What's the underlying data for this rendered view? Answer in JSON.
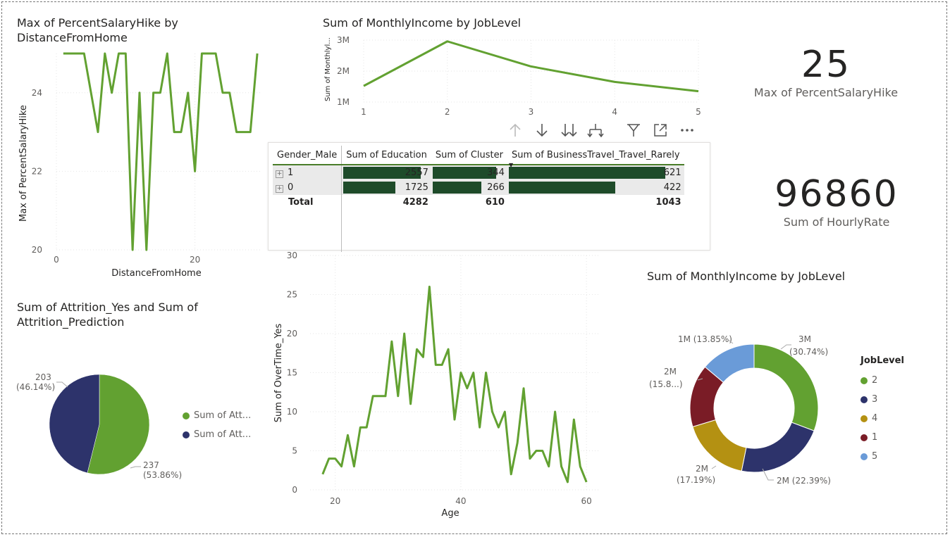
{
  "visuals": {
    "line_salary_hike": {
      "title": "Max of PercentSalaryHike by DistanceFromHome",
      "xlabel": "DistanceFromHome",
      "ylabel": "Max of PercentSalaryHike"
    },
    "line_income_joblevel": {
      "title": "Sum of MonthlyIncome by JobLevel",
      "ylabel": "Sum of Monthlyl..."
    },
    "card_salary_hike": {
      "value": "25",
      "label": "Max of PercentSalaryHike"
    },
    "card_hourly_rate": {
      "value": "96860",
      "label": "Sum of HourlyRate"
    },
    "matrix": {
      "headers": [
        "Gender_Male",
        "Sum of Education",
        "Sum of Cluster",
        "Sum of BusinessTravel_Travel_Rarely"
      ],
      "rows": [
        {
          "label": "1",
          "education": "2557",
          "cluster": "344",
          "travel": "621"
        },
        {
          "label": "0",
          "education": "1725",
          "cluster": "266",
          "travel": "422"
        }
      ],
      "total": {
        "label": "Total",
        "education": "4282",
        "cluster": "610",
        "travel": "1043"
      },
      "bar_fraction": {
        "education": [
          1.0,
          0.675
        ],
        "cluster": [
          1.0,
          0.773
        ],
        "travel": [
          1.0,
          0.68
        ]
      },
      "bar_color": "#1e4b2a"
    },
    "toolbar": {
      "icons": [
        "drill-up-icon",
        "drill-down-icon",
        "expand-all-down-icon",
        "expand-hierarchy-icon",
        "filter-icon",
        "focus-mode-icon",
        "more-options-icon"
      ]
    },
    "pie_attrition": {
      "title": "Sum of Attrition_Yes and Sum of Attrition_Prediction",
      "legend": [
        "Sum of Att...",
        "Sum of Att..."
      ],
      "labels": [
        "237\n(53.86%)",
        "203\n(46.14%)"
      ]
    },
    "line_overtime": {
      "xlabel": "Age",
      "ylabel": "Sum of OverTime_Yes"
    },
    "donut_income": {
      "title": "Sum of MonthlyIncome by JobLevel",
      "legend_title": "JobLevel",
      "legend": [
        "2",
        "3",
        "4",
        "1",
        "5"
      ],
      "labels": [
        "3M\n(30.74%)",
        "2M (22.39%)",
        "2M\n(17.19%)",
        "2M\n(15.8...)",
        "1M (13.85%)"
      ]
    }
  },
  "colors": {
    "green": "#62a131",
    "navy": "#2d336b",
    "gold": "#b49112",
    "maroon": "#7a1c26",
    "lightblue": "#6a9bd8"
  },
  "chart_data": [
    {
      "type": "line",
      "title": "Max of PercentSalaryHike by DistanceFromHome",
      "xlabel": "DistanceFromHome",
      "ylabel": "Max of PercentSalaryHike",
      "x": [
        1,
        2,
        3,
        4,
        5,
        6,
        7,
        8,
        9,
        10,
        11,
        12,
        13,
        14,
        15,
        16,
        17,
        18,
        19,
        20,
        21,
        22,
        23,
        24,
        25,
        26,
        27,
        28,
        29
      ],
      "y": [
        25,
        25,
        25,
        25,
        24,
        23,
        25,
        24,
        25,
        25,
        20,
        24,
        20,
        24,
        24,
        25,
        23,
        23,
        24,
        22,
        25,
        25,
        25,
        24,
        24,
        23,
        23,
        23,
        25
      ],
      "xlim": [
        0,
        29.5
      ],
      "ylim": [
        20,
        25
      ],
      "xticks": [
        0,
        20
      ],
      "yticks": [
        20,
        22,
        24
      ]
    },
    {
      "type": "line",
      "title": "Sum of MonthlyIncome by JobLevel",
      "ylabel": "Sum of Monthlyl...",
      "x": [
        1,
        2,
        3,
        4,
        5
      ],
      "y": [
        1.52,
        2.96,
        2.15,
        1.65,
        1.35
      ],
      "xlim": [
        1,
        5
      ],
      "ylim": [
        1,
        3
      ],
      "xticks": [
        1,
        2,
        3,
        4,
        5
      ],
      "yticks": [
        "1M",
        "2M",
        "3M"
      ]
    },
    {
      "type": "pie",
      "title": "Sum of Attrition_Yes and Sum of Attrition_Prediction",
      "categories": [
        "Sum of Att...",
        "Sum of Att..."
      ],
      "values": [
        237,
        203
      ],
      "percent": [
        53.86,
        46.14
      ]
    },
    {
      "type": "line",
      "xlabel": "Age",
      "ylabel": "Sum of OverTime_Yes",
      "x": [
        18,
        19,
        20,
        21,
        22,
        23,
        24,
        25,
        26,
        27,
        28,
        29,
        30,
        31,
        32,
        33,
        34,
        35,
        36,
        37,
        38,
        39,
        40,
        41,
        42,
        43,
        44,
        45,
        46,
        47,
        48,
        49,
        50,
        51,
        52,
        53,
        54,
        55,
        56,
        57,
        58,
        59,
        60
      ],
      "y": [
        2,
        4,
        4,
        3,
        7,
        3,
        8,
        8,
        12,
        12,
        12,
        19,
        12,
        20,
        11,
        18,
        17,
        26,
        16,
        16,
        18,
        9,
        15,
        13,
        15,
        8,
        15,
        10,
        8,
        10,
        2,
        6,
        13,
        4,
        5,
        5,
        3,
        10,
        3,
        1,
        9,
        3,
        1
      ],
      "xlim": [
        16,
        62
      ],
      "ylim": [
        0,
        30
      ],
      "xticks": [
        20,
        40,
        60
      ],
      "yticks": [
        0,
        5,
        10,
        15,
        20,
        25,
        30
      ]
    },
    {
      "type": "pie",
      "title": "Sum of MonthlyIncome by JobLevel",
      "categories": [
        "2",
        "3",
        "4",
        "1",
        "5"
      ],
      "percent": [
        30.74,
        22.39,
        17.19,
        15.83,
        13.85
      ]
    }
  ]
}
